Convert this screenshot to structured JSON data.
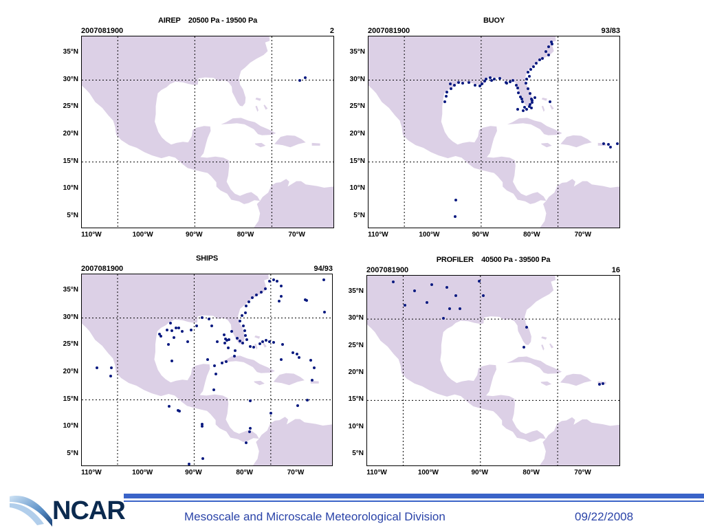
{
  "panels": [
    {
      "id": "airep",
      "title": "AIREP    20500 Pa - 19500 Pa",
      "date": "2007081900",
      "count": "2",
      "points": [
        [
          -68.5,
          30.4
        ],
        [
          -69.6,
          29.9
        ]
      ]
    },
    {
      "id": "buoy",
      "title": "BUOY",
      "date": "2007081900",
      "count": "93/83",
      "points": [
        [
          -76.3,
          37.0
        ],
        [
          -76.1,
          36.6
        ],
        [
          -76.8,
          36.1
        ],
        [
          -77.4,
          35.2
        ],
        [
          -76.8,
          34.6
        ],
        [
          -78.0,
          34.0
        ],
        [
          -78.6,
          33.7
        ],
        [
          -79.3,
          33.1
        ],
        [
          -79.8,
          32.5
        ],
        [
          -80.3,
          32.0
        ],
        [
          -80.9,
          31.4
        ],
        [
          -80.6,
          30.7
        ],
        [
          -81.1,
          30.2
        ],
        [
          -81.3,
          29.5
        ],
        [
          -80.9,
          28.4
        ],
        [
          -80.4,
          27.6
        ],
        [
          -80.2,
          26.6
        ],
        [
          -80.0,
          25.9
        ],
        [
          -80.6,
          25.1
        ],
        [
          -81.1,
          24.6
        ],
        [
          -81.8,
          24.4
        ],
        [
          -82.9,
          24.6
        ],
        [
          -80.2,
          24.9
        ],
        [
          -81.9,
          26.1
        ],
        [
          -82.3,
          26.9
        ],
        [
          -82.7,
          27.7
        ],
        [
          -82.9,
          28.5
        ],
        [
          -83.1,
          29.0
        ],
        [
          -83.8,
          29.9
        ],
        [
          -84.3,
          29.7
        ],
        [
          -85.1,
          29.6
        ],
        [
          -86.3,
          30.3
        ],
        [
          -87.5,
          30.2
        ],
        [
          -88.2,
          30.4
        ],
        [
          -88.0,
          30.0
        ],
        [
          -89.3,
          29.8
        ],
        [
          -89.9,
          29.3
        ],
        [
          -90.3,
          28.9
        ],
        [
          -91.2,
          29.0
        ],
        [
          -92.4,
          29.6
        ],
        [
          -93.6,
          29.5
        ],
        [
          -94.4,
          29.6
        ],
        [
          -95.2,
          29.1
        ],
        [
          -95.9,
          28.4
        ],
        [
          -96.7,
          27.8
        ],
        [
          -96.8,
          27.0
        ],
        [
          -97.1,
          26.1
        ],
        [
          -96.0,
          29.3
        ],
        [
          -89.0,
          30.2
        ],
        [
          -85.0,
          29.4
        ],
        [
          -82.0,
          26.5
        ],
        [
          -81.5,
          25.0
        ],
        [
          -80.1,
          26.3
        ],
        [
          -80.4,
          25.5
        ],
        [
          -79.5,
          26.8
        ],
        [
          -76.5,
          26.1
        ],
        [
          -65.2,
          18.2
        ],
        [
          -66.1,
          18.4
        ],
        [
          -64.7,
          17.7
        ],
        [
          -63.4,
          18.3
        ],
        [
          -95.0,
          8.0
        ],
        [
          -95.1,
          5.0
        ]
      ]
    },
    {
      "id": "ships",
      "title": "SHIPS",
      "date": "2007081900",
      "count": "94/93",
      "points": [
        [
          -74.5,
          37.0
        ],
        [
          -75.2,
          36.7
        ],
        [
          -73.8,
          36.8
        ],
        [
          -76.0,
          35.3
        ],
        [
          -76.8,
          34.7
        ],
        [
          -77.8,
          34.2
        ],
        [
          -78.6,
          33.7
        ],
        [
          -79.3,
          33.0
        ],
        [
          -79.8,
          32.2
        ],
        [
          -80.0,
          31.0
        ],
        [
          -80.6,
          30.5
        ],
        [
          -81.0,
          29.4
        ],
        [
          -80.4,
          28.6
        ],
        [
          -80.1,
          27.7
        ],
        [
          -80.0,
          26.8
        ],
        [
          -79.7,
          26.1
        ],
        [
          -80.5,
          25.4
        ],
        [
          -81.0,
          25.8
        ],
        [
          -81.6,
          26.3
        ],
        [
          -82.6,
          27.5
        ],
        [
          -73.0,
          35.8
        ],
        [
          -72.9,
          34.0
        ],
        [
          -73.4,
          33.1
        ],
        [
          -68.3,
          33.3
        ],
        [
          -68.0,
          33.2
        ],
        [
          -64.6,
          37.0
        ],
        [
          -64.5,
          31.1
        ],
        [
          -72.7,
          25.1
        ],
        [
          -74.5,
          25.5
        ],
        [
          -75.2,
          25.7
        ],
        [
          -75.9,
          25.9
        ],
        [
          -76.6,
          25.6
        ],
        [
          -77.2,
          25.3
        ],
        [
          -78.3,
          24.6
        ],
        [
          -79.0,
          24.8
        ],
        [
          -70.7,
          23.7
        ],
        [
          -69.9,
          23.4
        ],
        [
          -69.4,
          22.8
        ],
        [
          -72.9,
          22.4
        ],
        [
          -67.2,
          22.3
        ],
        [
          -66.5,
          20.9
        ],
        [
          -66.9,
          18.6
        ],
        [
          -67.9,
          14.9
        ],
        [
          -69.7,
          14.0
        ],
        [
          -75.0,
          12.6
        ],
        [
          -79.0,
          14.8
        ],
        [
          -79.0,
          9.8
        ],
        [
          -79.1,
          9.2
        ],
        [
          -79.8,
          7.2
        ],
        [
          -86.2,
          16.9
        ],
        [
          -85.8,
          19.7
        ],
        [
          -86.0,
          21.3
        ],
        [
          -87.3,
          22.4
        ],
        [
          -83.7,
          22.0
        ],
        [
          -84.5,
          21.7
        ],
        [
          -82.1,
          23.0
        ],
        [
          -82.0,
          24.0
        ],
        [
          -83.3,
          24.5
        ],
        [
          -84.0,
          25.4
        ],
        [
          -85.5,
          25.6
        ],
        [
          -84.2,
          26.9
        ],
        [
          -83.6,
          25.9
        ],
        [
          -83.2,
          26.1
        ],
        [
          -83.9,
          26.2
        ],
        [
          -86.5,
          28.5
        ],
        [
          -87.1,
          29.8
        ],
        [
          -88.4,
          30.1
        ],
        [
          -89.5,
          28.6
        ],
        [
          -90.6,
          27.8
        ],
        [
          -91.3,
          25.7
        ],
        [
          -92.3,
          27.6
        ],
        [
          -93.6,
          28.2
        ],
        [
          -94.4,
          27.7
        ],
        [
          -95.3,
          27.8
        ],
        [
          -94.0,
          26.4
        ],
        [
          -93.0,
          28.2
        ],
        [
          -96.5,
          26.7
        ],
        [
          -96.8,
          27.0
        ],
        [
          -94.7,
          29.1
        ],
        [
          -95.0,
          25.1
        ],
        [
          -94.3,
          22.1
        ],
        [
          -94.9,
          13.8
        ],
        [
          -93.1,
          13.1
        ],
        [
          -92.9,
          13.0
        ],
        [
          -88.4,
          10.6
        ],
        [
          -88.5,
          10.2
        ],
        [
          -88.3,
          4.2
        ],
        [
          -91.0,
          3.3
        ],
        [
          -90.8,
          2.7
        ],
        [
          -109.0,
          20.9
        ],
        [
          -106.2,
          20.9
        ],
        [
          -106.3,
          19.4
        ]
      ]
    },
    {
      "id": "profiler",
      "title": "PROFILER    40500 Pa - 39500 Pa",
      "date": "2007081900",
      "count": "16",
      "points": [
        [
          -106.9,
          36.9
        ],
        [
          -104.7,
          32.5
        ],
        [
          -102.8,
          35.2
        ],
        [
          -100.4,
          33.1
        ],
        [
          -99.5,
          36.3
        ],
        [
          -97.2,
          30.2
        ],
        [
          -96.5,
          35.9
        ],
        [
          -96.0,
          31.9
        ],
        [
          -94.8,
          34.3
        ],
        [
          -94.0,
          31.9
        ],
        [
          -90.3,
          37.0
        ],
        [
          -89.4,
          34.3
        ],
        [
          -81.0,
          28.5
        ],
        [
          -81.6,
          24.8
        ],
        [
          -66.9,
          18.0
        ],
        [
          -66.2,
          18.1
        ]
      ]
    }
  ],
  "axes": {
    "lat_labels": [
      "35°N",
      "30°N",
      "25°N",
      "20°N",
      "15°N",
      "10°N",
      "5°N"
    ],
    "lon_labels": [
      "110°W",
      "100°W",
      "90°W",
      "80°W",
      "70°W"
    ]
  },
  "colors": {
    "land": "#dcd0e6",
    "points": "#0a1a80",
    "brand": "#3a63c8",
    "brand_text": "#2a43a8"
  },
  "footer": {
    "logo_text": "NCAR",
    "division": "Mesoscale and Microscale Meteorological Division",
    "date": "09/22/2008"
  }
}
